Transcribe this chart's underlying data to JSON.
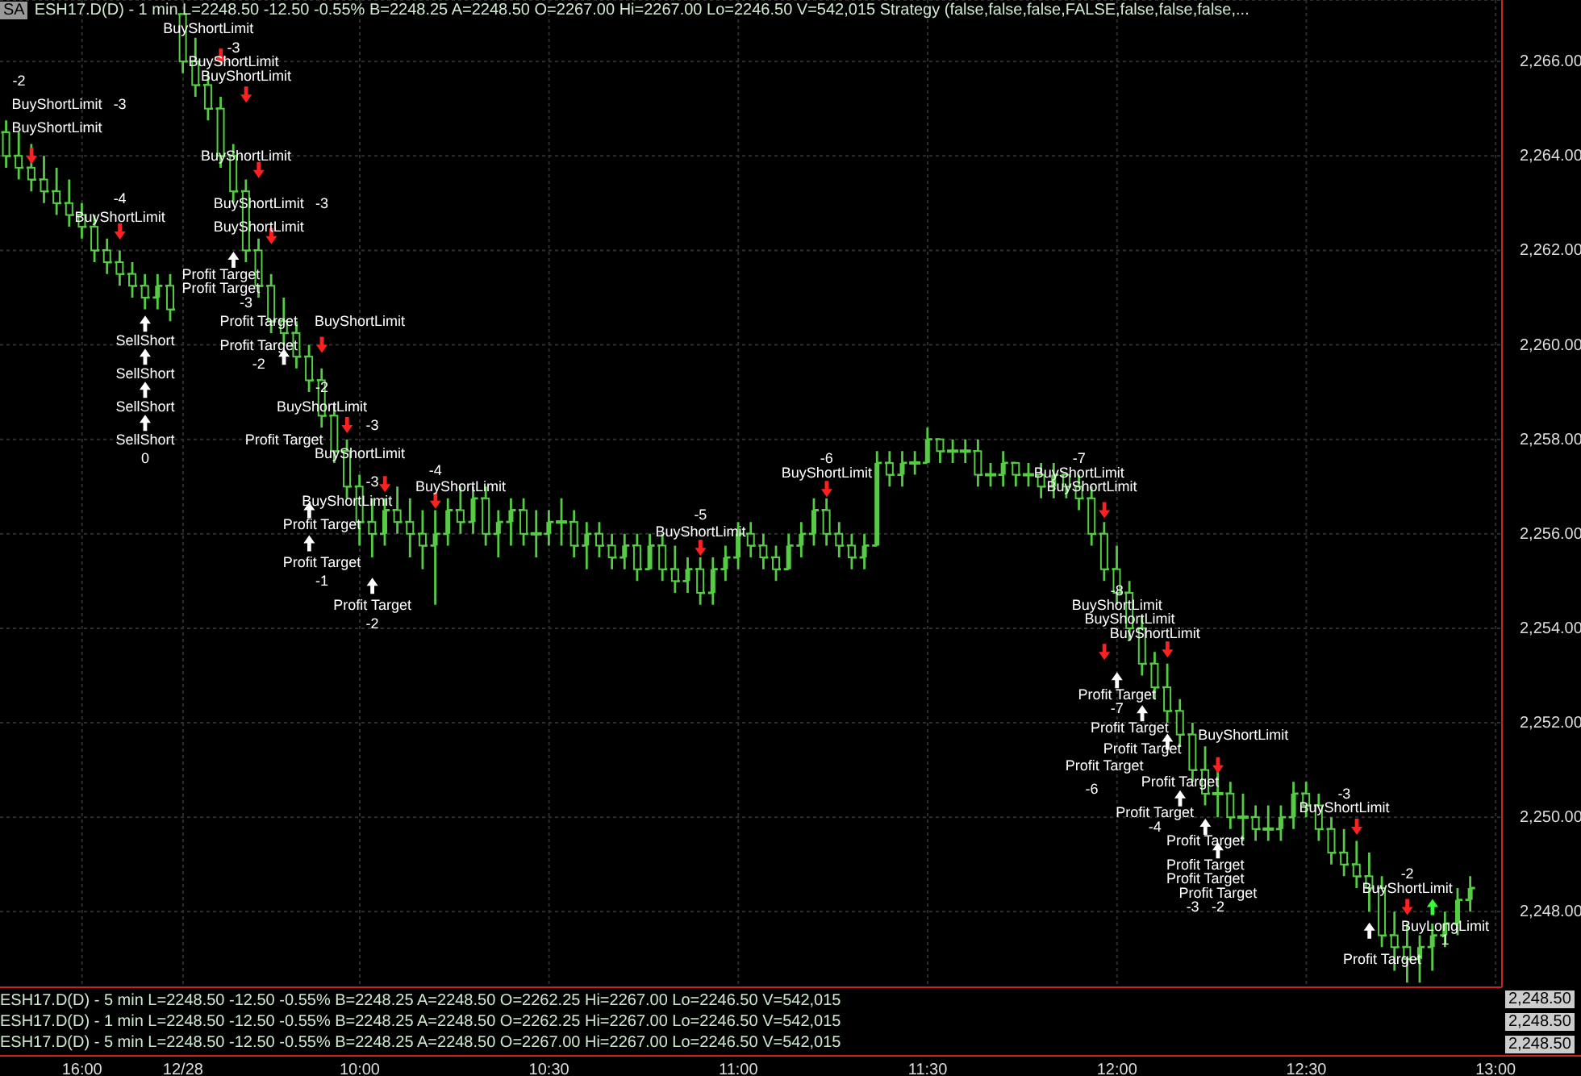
{
  "chart_data": {
    "type": "candlestick",
    "title": "ESH17.D(D) - 1 min L=2248.50 -12.50 -0.55% B=2248.25 A=2248.50 O=2267.00 Hi=2267.00 Lo=2246.50 V=542,015 Strategy (false,false,false,FALSE,false,false,false,...",
    "color": "#55cc44",
    "grid": true,
    "ylim": [
      2246.4,
      2267.3
    ],
    "yticks": [
      {
        "value": 2248,
        "label": "2,248.00"
      },
      {
        "value": 2250,
        "label": "2,250.00"
      },
      {
        "value": 2252,
        "label": "2,252.00"
      },
      {
        "value": 2254,
        "label": "2,254.00"
      },
      {
        "value": 2256,
        "label": "2,256.00"
      },
      {
        "value": 2258,
        "label": "2,258.00"
      },
      {
        "value": 2260,
        "label": "2,260.00"
      },
      {
        "value": 2262,
        "label": "2,262.00"
      },
      {
        "value": 2264,
        "label": "2,264.00"
      },
      {
        "value": 2266,
        "label": "2,266.00"
      }
    ],
    "categories": [
      null,
      null,
      null,
      null,
      null,
      null,
      "16:00",
      null,
      null,
      null,
      null,
      null,
      null,
      null,
      "12/28",
      null,
      null,
      null,
      null,
      null,
      null,
      null,
      null,
      null,
      null,
      null,
      null,
      null,
      "10:00",
      null,
      null,
      null,
      null,
      null,
      null,
      null,
      null,
      null,
      null,
      null,
      null,
      null,
      null,
      "10:30",
      null,
      null,
      null,
      null,
      null,
      null,
      null,
      null,
      null,
      null,
      null,
      null,
      null,
      null,
      "11:00",
      null,
      null,
      null,
      null,
      null,
      null,
      null,
      null,
      null,
      null,
      null,
      null,
      null,
      null,
      "11:30",
      null,
      null,
      null,
      null,
      null,
      null,
      null,
      null,
      null,
      null,
      null,
      null,
      null,
      null,
      "12:00",
      null,
      null,
      null,
      null,
      null,
      null,
      null,
      null,
      null,
      null,
      null,
      null,
      null,
      null,
      "12:30",
      null,
      null,
      null,
      null,
      null,
      null,
      null,
      null,
      null,
      null,
      null,
      null,
      null,
      null,
      "13:00"
    ],
    "ohlc": [
      [
        2264.5,
        2264.75,
        2263.75,
        2264.0
      ],
      [
        2264.0,
        2264.5,
        2263.5,
        2263.75
      ],
      [
        2263.75,
        2264.25,
        2263.25,
        2263.5
      ],
      [
        2263.5,
        2264.0,
        2263.0,
        2263.25
      ],
      [
        2263.25,
        2263.75,
        2262.75,
        2263.0
      ],
      [
        2263.0,
        2263.5,
        2262.5,
        2262.75
      ],
      [
        2262.75,
        2263.0,
        2262.25,
        2262.5
      ],
      [
        2262.5,
        2262.75,
        2261.75,
        2262.0
      ],
      [
        2262.0,
        2262.25,
        2261.5,
        2261.75
      ],
      [
        2261.75,
        2262.0,
        2261.25,
        2261.5
      ],
      [
        2261.5,
        2261.75,
        2261.0,
        2261.25
      ],
      [
        2261.25,
        2261.5,
        2260.75,
        2261.0
      ],
      [
        2261.0,
        2261.5,
        2260.75,
        2261.25
      ],
      [
        2261.25,
        2261.5,
        2260.5,
        2260.75
      ],
      [
        2267.0,
        2267.0,
        2265.75,
        2266.0
      ],
      [
        2266.0,
        2266.5,
        2265.25,
        2265.5
      ],
      [
        2265.5,
        2265.75,
        2264.75,
        2265.0
      ],
      [
        2265.0,
        2265.25,
        2263.75,
        2264.0
      ],
      [
        2264.0,
        2264.25,
        2263.0,
        2263.25
      ],
      [
        2263.25,
        2263.5,
        2261.75,
        2262.0
      ],
      [
        2262.0,
        2262.25,
        2261.0,
        2261.25
      ],
      [
        2261.25,
        2261.5,
        2260.25,
        2260.5
      ],
      [
        2260.5,
        2261.0,
        2260.0,
        2260.25
      ],
      [
        2260.25,
        2260.5,
        2259.5,
        2259.75
      ],
      [
        2259.75,
        2260.0,
        2259.0,
        2259.25
      ],
      [
        2259.25,
        2259.5,
        2258.25,
        2258.5
      ],
      [
        2258.5,
        2258.75,
        2257.5,
        2257.75
      ],
      [
        2257.75,
        2258.0,
        2256.75,
        2257.0
      ],
      [
        2257.0,
        2257.25,
        2255.75,
        2256.25
      ],
      [
        2256.25,
        2256.75,
        2255.5,
        2256.0
      ],
      [
        2256.0,
        2256.75,
        2255.75,
        2256.5
      ],
      [
        2256.5,
        2257.0,
        2256.0,
        2256.25
      ],
      [
        2256.25,
        2256.75,
        2255.5,
        2256.0
      ],
      [
        2256.0,
        2256.5,
        2255.25,
        2255.75
      ],
      [
        2255.75,
        2256.5,
        2254.5,
        2256.0
      ],
      [
        2256.0,
        2256.75,
        2255.75,
        2256.5
      ],
      [
        2256.5,
        2257.0,
        2256.0,
        2256.25
      ],
      [
        2256.25,
        2257.0,
        2256.0,
        2256.75
      ],
      [
        2256.75,
        2257.0,
        2255.75,
        2256.0
      ],
      [
        2256.0,
        2256.5,
        2255.5,
        2256.25
      ],
      [
        2256.25,
        2256.75,
        2255.75,
        2256.5
      ],
      [
        2256.5,
        2256.75,
        2255.75,
        2256.0
      ],
      [
        2256.0,
        2256.5,
        2255.5,
        2256.0
      ],
      [
        2256.0,
        2256.5,
        2255.75,
        2256.25
      ],
      [
        2256.25,
        2256.75,
        2255.75,
        2256.25
      ],
      [
        2256.25,
        2256.5,
        2255.5,
        2255.75
      ],
      [
        2255.75,
        2256.25,
        2255.25,
        2256.0
      ],
      [
        2256.0,
        2256.25,
        2255.5,
        2255.75
      ],
      [
        2255.75,
        2256.0,
        2255.25,
        2255.5
      ],
      [
        2255.5,
        2256.0,
        2255.25,
        2255.75
      ],
      [
        2255.75,
        2256.0,
        2255.0,
        2255.25
      ],
      [
        2255.25,
        2256.0,
        2255.25,
        2255.75
      ],
      [
        2255.75,
        2256.0,
        2255.0,
        2255.25
      ],
      [
        2255.25,
        2255.75,
        2254.75,
        2255.0
      ],
      [
        2255.0,
        2255.5,
        2254.75,
        2255.25
      ],
      [
        2255.25,
        2255.5,
        2254.5,
        2254.75
      ],
      [
        2254.75,
        2255.5,
        2254.5,
        2255.25
      ],
      [
        2255.25,
        2255.75,
        2255.0,
        2255.5
      ],
      [
        2255.5,
        2256.25,
        2255.25,
        2256.0
      ],
      [
        2256.0,
        2256.25,
        2255.5,
        2255.75
      ],
      [
        2255.75,
        2256.0,
        2255.25,
        2255.5
      ],
      [
        2255.5,
        2255.75,
        2255.0,
        2255.25
      ],
      [
        2255.25,
        2256.0,
        2255.25,
        2255.75
      ],
      [
        2255.75,
        2256.25,
        2255.5,
        2256.0
      ],
      [
        2256.0,
        2256.75,
        2255.75,
        2256.5
      ],
      [
        2256.5,
        2256.75,
        2255.75,
        2256.0
      ],
      [
        2256.0,
        2256.25,
        2255.5,
        2255.75
      ],
      [
        2255.75,
        2256.0,
        2255.25,
        2255.5
      ],
      [
        2255.5,
        2256.0,
        2255.25,
        2255.75
      ],
      [
        2255.75,
        2257.75,
        2255.75,
        2257.5
      ],
      [
        2257.5,
        2257.75,
        2257.0,
        2257.25
      ],
      [
        2257.25,
        2257.75,
        2257.0,
        2257.5
      ],
      [
        2257.5,
        2257.75,
        2257.25,
        2257.5
      ],
      [
        2257.5,
        2258.25,
        2257.5,
        2258.0
      ],
      [
        2258.0,
        2258.0,
        2257.5,
        2257.75
      ],
      [
        2257.75,
        2258.0,
        2257.5,
        2257.75
      ],
      [
        2257.75,
        2258.0,
        2257.5,
        2257.75
      ],
      [
        2257.75,
        2258.0,
        2257.0,
        2257.25
      ],
      [
        2257.25,
        2257.5,
        2257.0,
        2257.25
      ],
      [
        2257.25,
        2257.75,
        2257.0,
        2257.5
      ],
      [
        2257.5,
        2257.5,
        2257.0,
        2257.25
      ],
      [
        2257.25,
        2257.5,
        2257.0,
        2257.25
      ],
      [
        2257.25,
        2257.5,
        2256.75,
        2257.0
      ],
      [
        2257.0,
        2257.5,
        2256.75,
        2257.25
      ],
      [
        2257.25,
        2257.25,
        2256.75,
        2257.0
      ],
      [
        2257.0,
        2257.25,
        2256.5,
        2256.75
      ],
      [
        2256.75,
        2257.0,
        2255.75,
        2256.0
      ],
      [
        2256.0,
        2256.25,
        2255.0,
        2255.25
      ],
      [
        2255.25,
        2255.75,
        2254.5,
        2254.75
      ],
      [
        2254.75,
        2255.0,
        2253.75,
        2254.0
      ],
      [
        2254.0,
        2254.25,
        2253.0,
        2253.25
      ],
      [
        2253.25,
        2253.5,
        2252.5,
        2252.75
      ],
      [
        2252.75,
        2253.25,
        2252.0,
        2252.25
      ],
      [
        2252.25,
        2252.5,
        2251.5,
        2251.75
      ],
      [
        2251.75,
        2252.0,
        2250.75,
        2251.0
      ],
      [
        2251.0,
        2251.5,
        2250.25,
        2250.5
      ],
      [
        2250.5,
        2251.0,
        2250.0,
        2250.5
      ],
      [
        2250.5,
        2250.75,
        2249.75,
        2250.0
      ],
      [
        2250.0,
        2250.5,
        2249.5,
        2250.0
      ],
      [
        2250.0,
        2250.25,
        2249.5,
        2249.75
      ],
      [
        2249.75,
        2250.25,
        2249.5,
        2249.75
      ],
      [
        2249.75,
        2250.25,
        2249.5,
        2250.0
      ],
      [
        2250.0,
        2250.75,
        2249.75,
        2250.5
      ],
      [
        2250.5,
        2250.75,
        2250.0,
        2250.25
      ],
      [
        2250.25,
        2250.5,
        2249.5,
        2249.75
      ],
      [
        2249.75,
        2250.0,
        2249.0,
        2249.25
      ],
      [
        2249.25,
        2249.75,
        2248.75,
        2249.0
      ],
      [
        2249.0,
        2249.5,
        2248.5,
        2248.75
      ],
      [
        2248.75,
        2249.25,
        2248.0,
        2248.5
      ],
      [
        2248.5,
        2248.75,
        2247.25,
        2247.5
      ],
      [
        2247.5,
        2248.0,
        2246.75,
        2247.25
      ],
      [
        2247.25,
        2247.75,
        2246.5,
        2247.0
      ],
      [
        2247.0,
        2247.5,
        2246.5,
        2247.25
      ],
      [
        2247.25,
        2247.75,
        2246.75,
        2247.5
      ],
      [
        2247.5,
        2248.0,
        2247.25,
        2247.75
      ],
      [
        2247.75,
        2248.5,
        2247.5,
        2248.25
      ],
      [
        2248.25,
        2248.75,
        2248.0,
        2248.5
      ],
      null,
      null
    ],
    "annotations": [
      "SA",
      "ESH17.D(D) - 5 min L=2248.50 -12.50 -0.55% B=2248.25 A=2248.50 O=2262.25 Hi=2267.00 Lo=2246.50 V=542,015",
      "ESH17.D(D) - 1 min L=2248.50 -12.50 -0.55% B=2248.25 A=2248.50 O=2262.25 Hi=2267.00 Lo=2246.50 V=542,015",
      "ESH17.D(D) - 5 min L=2248.50 -12.50 -0.55% B=2248.25 A=2248.50 O=2267.00 Hi=2267.00 Lo=2246.50 V=542,015",
      "2,248.50",
      "2,248.50",
      "2,248.50",
      "-2",
      "BuyShortLimit",
      "-3",
      "BuyShortLimit",
      "-4",
      "BuyShortLimit",
      "SellShort",
      "SellShort",
      "SellShort",
      "SellShort",
      "0",
      "BuyShortLimit",
      "-3",
      "BuyShortLimit",
      "BuyShortLimit",
      "BuyShortLimit",
      "BuyShortLimit",
      "-3",
      "BuyShortLimit",
      "Profit Target",
      "Profit Target",
      "-3",
      "Profit Target",
      "BuyShortLimit",
      "Profit Target",
      "-2",
      "-2",
      "BuyShortLimit",
      "-3",
      "Profit Target",
      "BuyShortLimit",
      "-3",
      "-4",
      "BuyShortLimit",
      "BuyShortLimit",
      "Profit Target",
      "Profit Target",
      "-1",
      "Profit Target",
      "-2",
      "-5",
      "BuyShortLimit",
      "-6",
      "BuyShortLimit",
      "-7",
      "BuyShortLimit",
      "BuyShortLimit",
      "-8",
      "BuyShortLimit",
      "BuyShortLimit",
      "BuyShortLimit",
      "Profit Target",
      "-7",
      "Profit Target",
      "BuyShortLimit",
      "Profit Target",
      "Profit Target",
      "Profit Target",
      "-6",
      "Profit Target",
      "-4",
      "Profit Target",
      "Profit Target",
      "Profit Target",
      "Profit Target",
      "-3",
      "-2",
      "-3",
      "BuyShortLimit",
      "-2",
      "BuyShortLimit",
      "BuyLongLimit",
      "1",
      "Profit Target"
    ]
  }
}
